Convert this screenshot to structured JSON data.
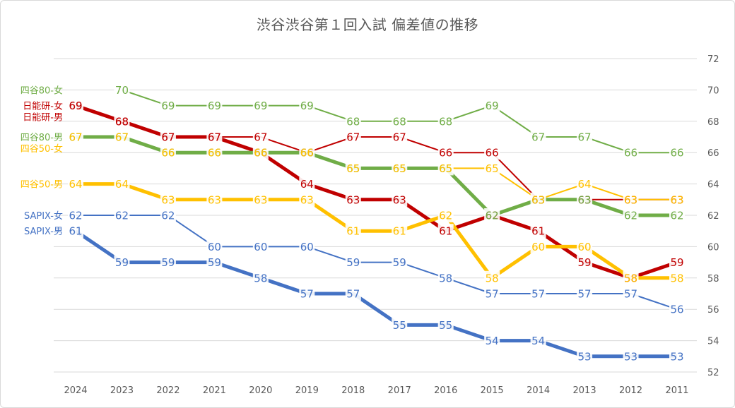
{
  "chart_data": {
    "type": "line",
    "title": "渋谷渋谷第１回入試 偏差値の推移",
    "categories": [
      "2024",
      "2023",
      "2022",
      "2021",
      "2020",
      "2019",
      "2018",
      "2017",
      "2016",
      "2015",
      "2014",
      "2013",
      "2012",
      "2011"
    ],
    "ylim": [
      52,
      72
    ],
    "yticks": [
      52,
      54,
      56,
      58,
      60,
      62,
      64,
      66,
      68,
      70,
      72
    ],
    "y_axis_position": "right",
    "grid": true,
    "series": [
      {
        "name": "四谷80-女",
        "color": "#70ad47",
        "weight": "thin",
        "values": [
          null,
          70,
          69,
          69,
          69,
          69,
          68,
          68,
          68,
          69,
          67,
          67,
          66,
          66
        ]
      },
      {
        "name": "日能研-女",
        "color": "#c00000",
        "weight": "thin",
        "values": [
          69,
          68,
          67,
          67,
          67,
          66,
          67,
          67,
          66,
          66,
          63,
          63,
          63,
          63
        ]
      },
      {
        "name": "日能研-男",
        "color": "#c00000",
        "weight": "thick",
        "values": [
          69,
          68,
          67,
          67,
          66,
          64,
          63,
          63,
          61,
          62,
          61,
          59,
          58,
          59
        ]
      },
      {
        "name": "四谷80-男",
        "color": "#70ad47",
        "weight": "thick",
        "values": [
          67,
          67,
          66,
          66,
          66,
          66,
          65,
          65,
          65,
          62,
          63,
          63,
          62,
          62
        ]
      },
      {
        "name": "四谷50-女",
        "color": "#ffc000",
        "weight": "thin",
        "values": [
          67,
          67,
          66,
          66,
          66,
          66,
          65,
          65,
          65,
          65,
          63,
          64,
          63,
          63
        ]
      },
      {
        "name": "四谷50-男",
        "color": "#ffc000",
        "weight": "thick",
        "values": [
          64,
          64,
          63,
          63,
          63,
          63,
          61,
          61,
          62,
          58,
          60,
          60,
          58,
          58
        ]
      },
      {
        "name": "SAPIX-女",
        "color": "#4472c4",
        "weight": "thin",
        "values": [
          62,
          62,
          62,
          60,
          60,
          60,
          59,
          59,
          58,
          57,
          57,
          57,
          57,
          56
        ]
      },
      {
        "name": "SAPIX-男",
        "color": "#4472c4",
        "weight": "thick",
        "values": [
          61,
          59,
          59,
          59,
          58,
          57,
          57,
          55,
          55,
          54,
          54,
          53,
          53,
          53
        ]
      }
    ]
  }
}
